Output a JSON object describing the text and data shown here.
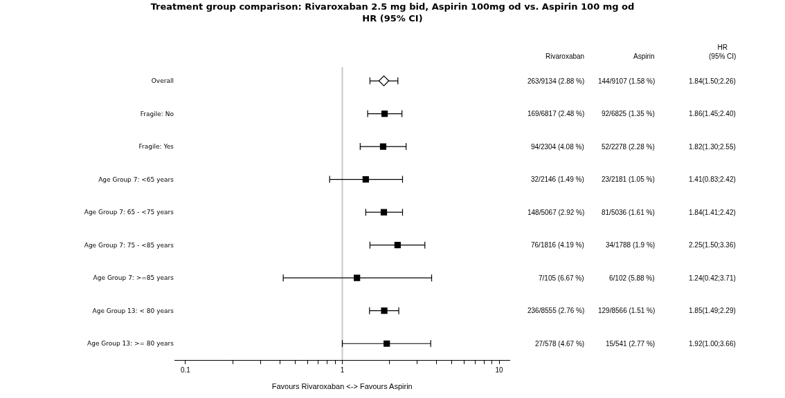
{
  "chart_data": {
    "type": "scatter",
    "orientation": "horizontal",
    "title": "Treatment group comparison: Rivaroxaban 2.5 mg bid, Aspirin 100mg od vs. Aspirin 100 mg od",
    "subtitle": "HR (95% CI)",
    "xlabel": "Favours Rivaroxaban <-> Favours Aspirin",
    "categories": [
      "Overall",
      "Fragile: No",
      "Fragile: Yes",
      "Age Group 7: <65 years",
      "Age Group 7: 65 - <75 years",
      "Age Group 7: 75 - <85 years",
      "Age Group 7: >=85 years",
      "Age Group 13: < 80 years",
      "Age Group 13: >= 80 years"
    ],
    "series": [
      {
        "color": "#ffffff",
        "marker": "diamond",
        "values": [
          1.84,
          null,
          null,
          null,
          null,
          null,
          null,
          null,
          null
        ],
        "errors": [
          [
            1.5,
            2.26
          ],
          null,
          null,
          null,
          null,
          null,
          null,
          null,
          null
        ]
      },
      {
        "color": "#000000",
        "marker": "square",
        "values": [
          null,
          1.86,
          1.82,
          1.41,
          1.84,
          2.25,
          1.24,
          1.85,
          1.92
        ],
        "errors": [
          null,
          [
            1.45,
            2.4
          ],
          [
            1.3,
            2.55
          ],
          [
            0.83,
            2.42
          ],
          [
            1.41,
            2.42
          ],
          [
            1.5,
            3.36
          ],
          [
            0.42,
            3.71
          ],
          [
            1.49,
            2.29
          ],
          [
            1.0,
            3.66
          ]
        ]
      }
    ],
    "log": "x",
    "xlim": [
      0.085,
      11.7
    ],
    "xticks": [
      0.1,
      {
        "value": 0.2,
        "label": null
      },
      {
        "value": 0.3,
        "label": null
      },
      {
        "value": 0.4,
        "label": null
      },
      {
        "value": 0.5,
        "label": null
      },
      {
        "value": 0.6,
        "label": null
      },
      {
        "value": 0.7,
        "label": null
      },
      {
        "value": 0.8,
        "label": null
      },
      {
        "value": 0.9,
        "label": null
      },
      1,
      {
        "value": 2,
        "label": null
      },
      {
        "value": 3,
        "label": null
      },
      {
        "value": 4,
        "label": null
      },
      {
        "value": 5,
        "label": null
      },
      {
        "value": 6,
        "label": null
      },
      {
        "value": 7,
        "label": null
      },
      {
        "value": 8,
        "label": null
      },
      {
        "value": 9,
        "label": null
      },
      10
    ],
    "ref_lines": [
      {
        "axis": "x",
        "value": 1,
        "color": "#c8c8c8"
      }
    ],
    "annotations": [
      "Rivaroxaban",
      "Aspirin",
      "HR\n(95% CI)",
      "263/9134 (2.88 %)",
      "144/9107 (1.58 %)",
      "1.84(1.50;2.26)",
      "169/6817 (2.48 %)",
      "92/6825 (1.35 %)",
      "1.86(1.45;2.40)",
      "94/2304 (4.08 %)",
      "52/2278 (2.28 %)",
      "1.82(1.30;2.55)",
      "32/2146 (1.49 %)",
      "23/2181 (1.05 %)",
      "1.41(0.83;2.42)",
      "148/5067 (2.92 %)",
      "81/5036 (1.61 %)",
      "1.84(1.41;2.42)",
      "76/1816 (4.19 %)",
      "34/1788 (1.9 %)",
      "2.25(1.50;3.36)",
      "7/105 (6.67 %)",
      "6/102 (5.88 %)",
      "1.24(0.42;3.71)",
      "236/8555 (2.76 %)",
      "129/8566 (1.51 %)",
      "1.85(1.49;2.29)",
      "27/578 (4.67 %)",
      "15/541 (2.77 %)",
      "1.92(1.00;3.66)"
    ]
  }
}
